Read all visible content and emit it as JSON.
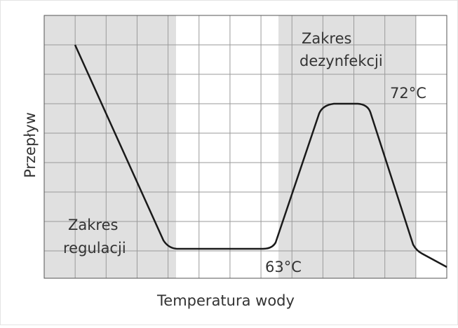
{
  "diagram": {
    "x_axis_label": "Temperatura wody",
    "y_axis_label": "Przepływ",
    "disinfection_range": [
      "Zakres",
      "dezynfekcji"
    ],
    "regulation_range": [
      "Zakres",
      "regulacji"
    ],
    "temp_high": "72°C",
    "temp_low": "63°C"
  }
}
